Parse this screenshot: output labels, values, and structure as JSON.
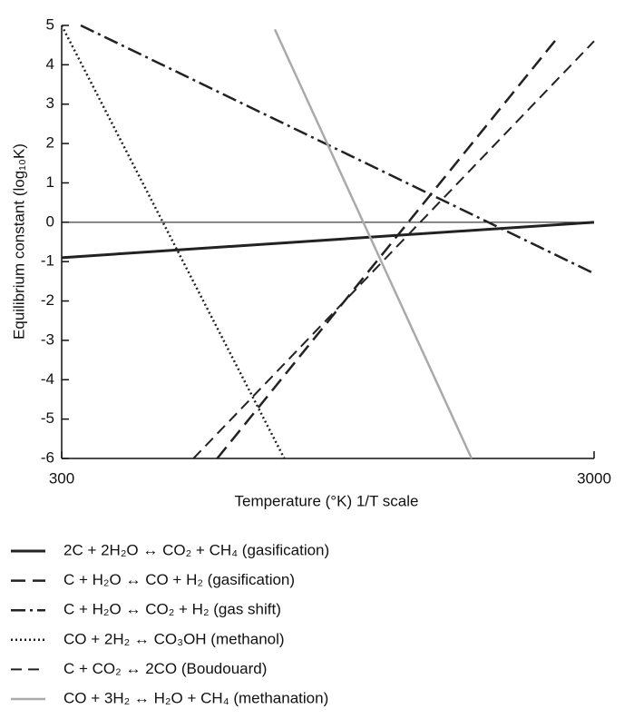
{
  "chart_data": {
    "type": "line",
    "xlabel": "Temperature (°K) 1/T scale",
    "ylabel": "Equilibrium constant (log₁₀K)",
    "xscale": "reciprocal",
    "xlim": [
      300,
      3000
    ],
    "xticks": [
      300,
      3000
    ],
    "ylim": [
      -6,
      5
    ],
    "yticks": [
      -6,
      -5,
      -4,
      -3,
      -2,
      -1,
      0,
      1,
      2,
      3,
      4,
      5
    ],
    "zero_line": true,
    "series": [
      {
        "name": "2C + 2H₂O ↔ CO₂ + CH₄ (gasification)",
        "color": "#222",
        "dash": "none",
        "width": 3,
        "x": [
          300,
          3000
        ],
        "values": [
          -0.9,
          0
        ]
      },
      {
        "name": "C + H₂O ↔ CO + H₂ (gasification)",
        "color": "#222",
        "dash": "16,8",
        "width": 2.5,
        "x": [
          407,
          1862
        ],
        "values": [
          -6,
          4.7
        ]
      },
      {
        "name": "C + H₂O ↔ CO₂ + H₂ (gas shift)",
        "color": "#222",
        "dash": "16,5,3,5",
        "width": 2.5,
        "x": [
          310,
          3000
        ],
        "values": [
          5,
          -1.3
        ]
      },
      {
        "name": "CO + 2H₂ ↔ CO₃OH (methanol)",
        "color": "#222",
        "dash": "2,3",
        "width": 2.5,
        "x": [
          300,
          481
        ],
        "values": [
          5,
          -6
        ]
      },
      {
        "name": "C + CO₂ ↔ 2CO (Boudouard)",
        "color": "#222",
        "dash": "12,7",
        "width": 2,
        "x": [
          386,
          3000
        ],
        "values": [
          -6,
          4.6
        ]
      },
      {
        "name": "CO + 3H₂ ↔ H₂O + CH₄ (methanation)",
        "color": "#aaa",
        "dash": "none",
        "width": 2.5,
        "x": [
          469,
          977
        ],
        "values": [
          4.9,
          -6
        ]
      }
    ]
  }
}
